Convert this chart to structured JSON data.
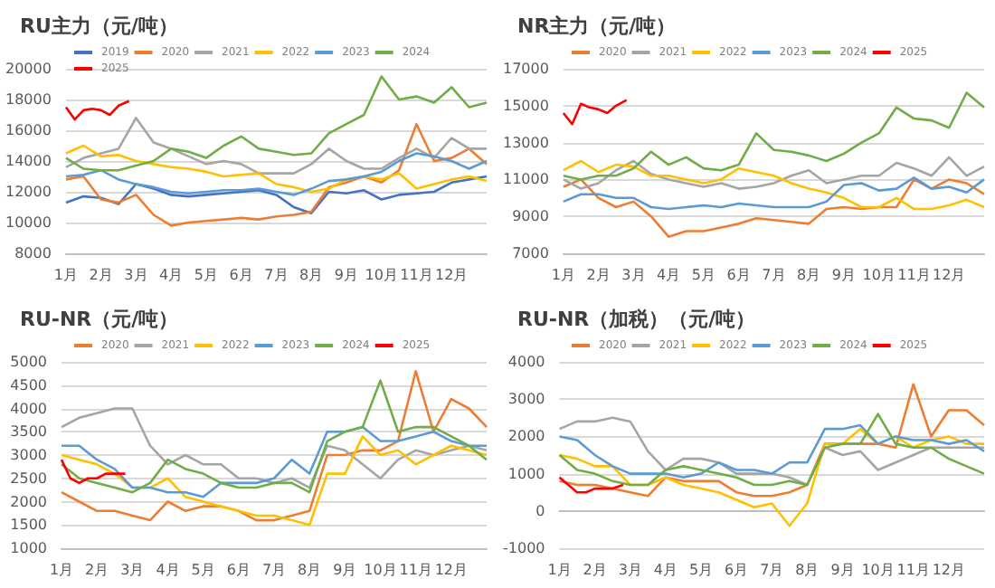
{
  "chart_data": [
    {
      "type": "line",
      "title": "RU主力（元/吨）",
      "legend": "top",
      "grid": "y",
      "marker": "none",
      "xlim": [
        1,
        13
      ],
      "xticks": [
        {
          "value": 1,
          "label": "1月"
        },
        {
          "value": 2,
          "label": "2月"
        },
        {
          "value": 3,
          "label": "3月"
        },
        {
          "value": 4,
          "label": "4月"
        },
        {
          "value": 5,
          "label": "5月"
        },
        {
          "value": 6,
          "label": "6月"
        },
        {
          "value": 7,
          "label": "7月"
        },
        {
          "value": 8,
          "label": "8月"
        },
        {
          "value": 9,
          "label": "9月"
        },
        {
          "value": 10,
          "label": "10月"
        },
        {
          "value": 11,
          "label": "11月"
        },
        {
          "value": 12,
          "label": "12月"
        }
      ],
      "ylim": [
        8000,
        20000
      ],
      "yticks": [
        8000,
        10000,
        12000,
        14000,
        16000,
        18000,
        20000
      ],
      "x": [
        1,
        1.5,
        2,
        2.5,
        3,
        3.5,
        4,
        4.5,
        5,
        5.5,
        6,
        6.5,
        7,
        7.5,
        8,
        8.5,
        9,
        9.5,
        10,
        10.5,
        11,
        11.5,
        12,
        12.5,
        13
      ],
      "series": [
        {
          "name": "2019",
          "color": "#4472c4",
          "values": [
            11300,
            11700,
            11600,
            11200,
            12500,
            12200,
            11800,
            11700,
            11800,
            11900,
            12000,
            12100,
            11800,
            11000,
            10600,
            12000,
            11900,
            12100,
            11500,
            11800,
            11900,
            12000,
            12600,
            12800,
            13000
          ]
        },
        {
          "name": "2020",
          "color": "#ed7d31",
          "values": [
            12800,
            13000,
            11500,
            11300,
            11800,
            10500,
            9800,
            10000,
            10100,
            10200,
            10300,
            10200,
            10400,
            10500,
            10700,
            12300,
            12600,
            13000,
            12600,
            13400,
            16400,
            14000,
            14200,
            14800,
            13800
          ]
        },
        {
          "name": "2021",
          "color": "#a5a5a5",
          "values": [
            13600,
            14200,
            14500,
            14800,
            16800,
            15200,
            14800,
            14300,
            13800,
            14000,
            13800,
            13200,
            13200,
            13200,
            13800,
            14800,
            14000,
            13500,
            13500,
            14200,
            14800,
            14200,
            15500,
            14800,
            14800
          ]
        },
        {
          "name": "2022",
          "color": "#ffc000",
          "values": [
            14500,
            15000,
            14300,
            14400,
            14000,
            13800,
            13600,
            13500,
            13300,
            13000,
            13100,
            13200,
            12500,
            12300,
            12000,
            12200,
            12800,
            13000,
            12800,
            13200,
            12200,
            12500,
            12800,
            13000,
            12700
          ]
        },
        {
          "name": "2023",
          "color": "#5b9bd5",
          "values": [
            13000,
            13100,
            13400,
            12800,
            12500,
            12300,
            12000,
            11900,
            12000,
            12100,
            12100,
            12200,
            12000,
            11800,
            12200,
            12700,
            12800,
            13000,
            13300,
            14000,
            14500,
            14300,
            14000,
            13500,
            14000
          ]
        },
        {
          "name": "2024",
          "color": "#70ad47",
          "values": [
            14200,
            13500,
            13400,
            13400,
            13700,
            14000,
            14800,
            14600,
            14200,
            15000,
            15600,
            14800,
            14600,
            14400,
            14500,
            15800,
            16400,
            17000,
            19500,
            18000,
            18200,
            17800,
            18800,
            17500,
            17800
          ]
        },
        {
          "name": "2025",
          "color": "#ff0000",
          "x": [
            1,
            1.25,
            1.5,
            1.75,
            2,
            2.25,
            2.5,
            2.8
          ],
          "values": [
            17500,
            16700,
            17300,
            17400,
            17300,
            17000,
            17600,
            17900
          ]
        }
      ]
    },
    {
      "type": "line",
      "title": "NR主力（元/吨）",
      "legend": "top",
      "grid": "y",
      "marker": "none",
      "xlim": [
        1,
        13
      ],
      "xticks": [
        {
          "value": 1,
          "label": "1月"
        },
        {
          "value": 2,
          "label": "2月"
        },
        {
          "value": 3,
          "label": "3月"
        },
        {
          "value": 4,
          "label": "4月"
        },
        {
          "value": 5,
          "label": "5月"
        },
        {
          "value": 6,
          "label": "6月"
        },
        {
          "value": 7,
          "label": "7月"
        },
        {
          "value": 8,
          "label": "8月"
        },
        {
          "value": 9,
          "label": "9月"
        },
        {
          "value": 10,
          "label": "10月"
        },
        {
          "value": 11,
          "label": "11月"
        },
        {
          "value": 12,
          "label": "12月"
        }
      ],
      "ylim": [
        7000,
        17000
      ],
      "yticks": [
        7000,
        9000,
        11000,
        13000,
        15000,
        17000
      ],
      "x": [
        1,
        1.5,
        2,
        2.5,
        3,
        3.5,
        4,
        4.5,
        5,
        5.5,
        6,
        6.5,
        7,
        7.5,
        8,
        8.5,
        9,
        9.5,
        10,
        10.5,
        11,
        11.5,
        12,
        12.5,
        13
      ],
      "series": [
        {
          "name": "2020",
          "color": "#ed7d31",
          "values": [
            10600,
            11000,
            10000,
            9500,
            9800,
            9000,
            7900,
            8200,
            8200,
            8400,
            8600,
            8900,
            8800,
            8700,
            8600,
            9400,
            9500,
            9400,
            9500,
            9500,
            11000,
            10500,
            11000,
            10800,
            10200
          ]
        },
        {
          "name": "2021",
          "color": "#a5a5a5",
          "values": [
            11000,
            10500,
            10800,
            11500,
            12000,
            11300,
            11000,
            10800,
            10600,
            10800,
            10500,
            10600,
            10800,
            11200,
            11500,
            10800,
            11000,
            11200,
            11200,
            11900,
            11600,
            11200,
            12200,
            11200,
            11700
          ]
        },
        {
          "name": "2022",
          "color": "#ffc000",
          "values": [
            11500,
            12000,
            11400,
            11800,
            11700,
            11200,
            11200,
            11000,
            10800,
            11000,
            11600,
            11400,
            11200,
            10800,
            10500,
            10300,
            10000,
            9500,
            9500,
            10000,
            9400,
            9400,
            9600,
            9900,
            9500
          ]
        },
        {
          "name": "2023",
          "color": "#5b9bd5",
          "values": [
            9800,
            10200,
            10200,
            10000,
            10000,
            9500,
            9400,
            9500,
            9600,
            9500,
            9700,
            9600,
            9500,
            9500,
            9500,
            9800,
            10700,
            10800,
            10400,
            10500,
            11100,
            10500,
            10600,
            10300,
            11000
          ]
        },
        {
          "name": "2024",
          "color": "#70ad47",
          "values": [
            11200,
            11000,
            11200,
            11200,
            11600,
            12500,
            11800,
            12200,
            11600,
            11500,
            11800,
            13500,
            12600,
            12500,
            12300,
            12000,
            12400,
            13000,
            13500,
            14900,
            14300,
            14200,
            13800,
            15700,
            14900
          ]
        },
        {
          "name": "2025",
          "color": "#ff0000",
          "x": [
            1,
            1.25,
            1.5,
            1.75,
            2,
            2.25,
            2.5,
            2.8
          ],
          "values": [
            14600,
            14000,
            15100,
            14900,
            14800,
            14600,
            15000,
            15300
          ]
        }
      ]
    },
    {
      "type": "line",
      "title": "RU-NR（元/吨）",
      "legend": "top",
      "grid": "y",
      "marker": "none",
      "xlim": [
        1,
        13
      ],
      "xticks": [
        {
          "value": 1,
          "label": "1月"
        },
        {
          "value": 2,
          "label": "2月"
        },
        {
          "value": 3,
          "label": "3月"
        },
        {
          "value": 4,
          "label": "4月"
        },
        {
          "value": 5,
          "label": "5月"
        },
        {
          "value": 6,
          "label": "6月"
        },
        {
          "value": 7,
          "label": "7月"
        },
        {
          "value": 8,
          "label": "8月"
        },
        {
          "value": 9,
          "label": "9月"
        },
        {
          "value": 10,
          "label": "10月"
        },
        {
          "value": 11,
          "label": "11月"
        },
        {
          "value": 12,
          "label": "12月"
        }
      ],
      "ylim": [
        1000,
        5000
      ],
      "yticks": [
        1000,
        1500,
        2000,
        2500,
        3000,
        3500,
        4000,
        4500,
        5000
      ],
      "x": [
        1,
        1.5,
        2,
        2.5,
        3,
        3.5,
        4,
        4.5,
        5,
        5.5,
        6,
        6.5,
        7,
        7.5,
        8,
        8.5,
        9,
        9.5,
        10,
        10.5,
        11,
        11.5,
        12,
        12.5,
        13
      ],
      "series": [
        {
          "name": "2020",
          "color": "#ed7d31",
          "values": [
            2200,
            2000,
            1800,
            1800,
            1700,
            1600,
            2000,
            1800,
            1900,
            1900,
            1800,
            1600,
            1600,
            1700,
            1800,
            3000,
            3000,
            3100,
            3100,
            3300,
            4800,
            3500,
            4200,
            4000,
            3600
          ]
        },
        {
          "name": "2021",
          "color": "#a5a5a5",
          "values": [
            3600,
            3800,
            3900,
            4000,
            4000,
            3200,
            2800,
            3000,
            2800,
            2800,
            2500,
            2500,
            2400,
            2500,
            2300,
            3200,
            3100,
            2800,
            2500,
            2900,
            3100,
            3000,
            3100,
            3200,
            3100
          ]
        },
        {
          "name": "2022",
          "color": "#ffc000",
          "values": [
            3000,
            2900,
            2800,
            2600,
            2300,
            2300,
            2500,
            2100,
            2000,
            1900,
            1800,
            1700,
            1700,
            1600,
            1500,
            2600,
            2600,
            3400,
            3000,
            3100,
            2800,
            3000,
            3200,
            3100,
            3000
          ]
        },
        {
          "name": "2023",
          "color": "#5b9bd5",
          "values": [
            3200,
            3200,
            2900,
            2700,
            2300,
            2300,
            2200,
            2200,
            2100,
            2400,
            2400,
            2400,
            2500,
            2900,
            2600,
            3500,
            3500,
            3600,
            3300,
            3300,
            3400,
            3500,
            3300,
            3200,
            3200
          ]
        },
        {
          "name": "2024",
          "color": "#70ad47",
          "values": [
            2800,
            2500,
            2400,
            2300,
            2200,
            2400,
            2900,
            2700,
            2600,
            2400,
            2300,
            2300,
            2400,
            2400,
            2200,
            3300,
            3500,
            3600,
            4600,
            3500,
            3600,
            3600,
            3400,
            3200,
            2900
          ]
        },
        {
          "name": "2025",
          "color": "#ff0000",
          "x": [
            1,
            1.25,
            1.5,
            1.75,
            2,
            2.25,
            2.5,
            2.8
          ],
          "values": [
            2900,
            2500,
            2400,
            2500,
            2500,
            2600,
            2600,
            2600
          ]
        }
      ]
    },
    {
      "type": "line",
      "title": "RU-NR（加税）（元/吨）",
      "legend": "top",
      "grid": "y",
      "marker": "none",
      "xlim": [
        1,
        13
      ],
      "xticks": [
        {
          "value": 1,
          "label": "1月"
        },
        {
          "value": 2,
          "label": "2月"
        },
        {
          "value": 3,
          "label": "3月"
        },
        {
          "value": 4,
          "label": "4月"
        },
        {
          "value": 5,
          "label": "5月"
        },
        {
          "value": 6,
          "label": "6月"
        },
        {
          "value": 7,
          "label": "7月"
        },
        {
          "value": 8,
          "label": "8月"
        },
        {
          "value": 9,
          "label": "9月"
        },
        {
          "value": 10,
          "label": "10月"
        },
        {
          "value": 11,
          "label": "11月"
        },
        {
          "value": 12,
          "label": "12月"
        }
      ],
      "ylim": [
        -1000,
        4000
      ],
      "yticks": [
        -1000,
        0,
        1000,
        2000,
        3000,
        4000
      ],
      "x": [
        1,
        1.5,
        2,
        2.5,
        3,
        3.5,
        4,
        4.5,
        5,
        5.5,
        6,
        6.5,
        7,
        7.5,
        8,
        8.5,
        9,
        9.5,
        10,
        10.5,
        11,
        11.5,
        12,
        12.5,
        13
      ],
      "series": [
        {
          "name": "2020",
          "color": "#ed7d31",
          "values": [
            800,
            700,
            700,
            600,
            500,
            400,
            900,
            800,
            800,
            800,
            500,
            400,
            400,
            500,
            700,
            1800,
            1800,
            1800,
            1800,
            1700,
            3400,
            2000,
            2700,
            2700,
            2300
          ]
        },
        {
          "name": "2021",
          "color": "#a5a5a5",
          "values": [
            2200,
            2400,
            2400,
            2500,
            2400,
            1600,
            1100,
            1400,
            1400,
            1300,
            1000,
            1000,
            1000,
            900,
            700,
            1700,
            1500,
            1600,
            1100,
            1300,
            1500,
            1700,
            1700,
            1700,
            1700
          ]
        },
        {
          "name": "2022",
          "color": "#ffc000",
          "values": [
            1500,
            1400,
            1200,
            1200,
            700,
            700,
            900,
            700,
            600,
            500,
            300,
            100,
            200,
            -400,
            200,
            1800,
            1800,
            2200,
            1800,
            2000,
            1700,
            1900,
            2000,
            1800,
            1800
          ]
        },
        {
          "name": "2023",
          "color": "#5b9bd5",
          "values": [
            2000,
            1900,
            1500,
            1200,
            1000,
            1000,
            1000,
            900,
            1000,
            1300,
            1100,
            1100,
            1000,
            1300,
            1300,
            2200,
            2200,
            2300,
            1800,
            2000,
            1900,
            1900,
            1800,
            1900,
            1600
          ]
        },
        {
          "name": "2024",
          "color": "#70ad47",
          "values": [
            1500,
            1100,
            1000,
            800,
            700,
            700,
            1100,
            1200,
            1100,
            1000,
            900,
            700,
            700,
            800,
            700,
            1700,
            1800,
            1800,
            2600,
            1800,
            1700,
            1700,
            1400,
            1200,
            1000
          ]
        },
        {
          "name": "2025",
          "color": "#ff0000",
          "x": [
            1,
            1.25,
            1.5,
            1.75,
            2,
            2.25,
            2.5,
            2.8
          ],
          "values": [
            900,
            700,
            500,
            500,
            600,
            600,
            600,
            700
          ]
        }
      ]
    }
  ]
}
